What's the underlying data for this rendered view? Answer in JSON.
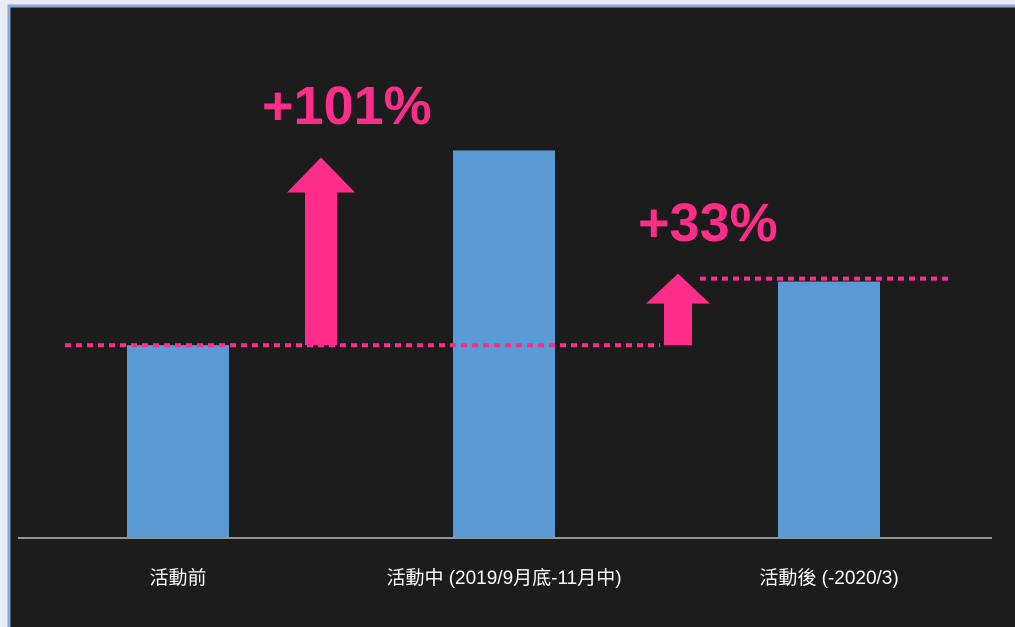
{
  "chart_data": {
    "type": "bar",
    "categories": [
      "活動前",
      "活動中 (2019/9月底-11月中)",
      "活動後 (-2020/3)"
    ],
    "values": [
      100,
      201,
      133
    ],
    "color": "#5b9bd5",
    "ylim": [
      0,
      250
    ],
    "annotations": [
      "+101%",
      "+33%"
    ]
  }
}
